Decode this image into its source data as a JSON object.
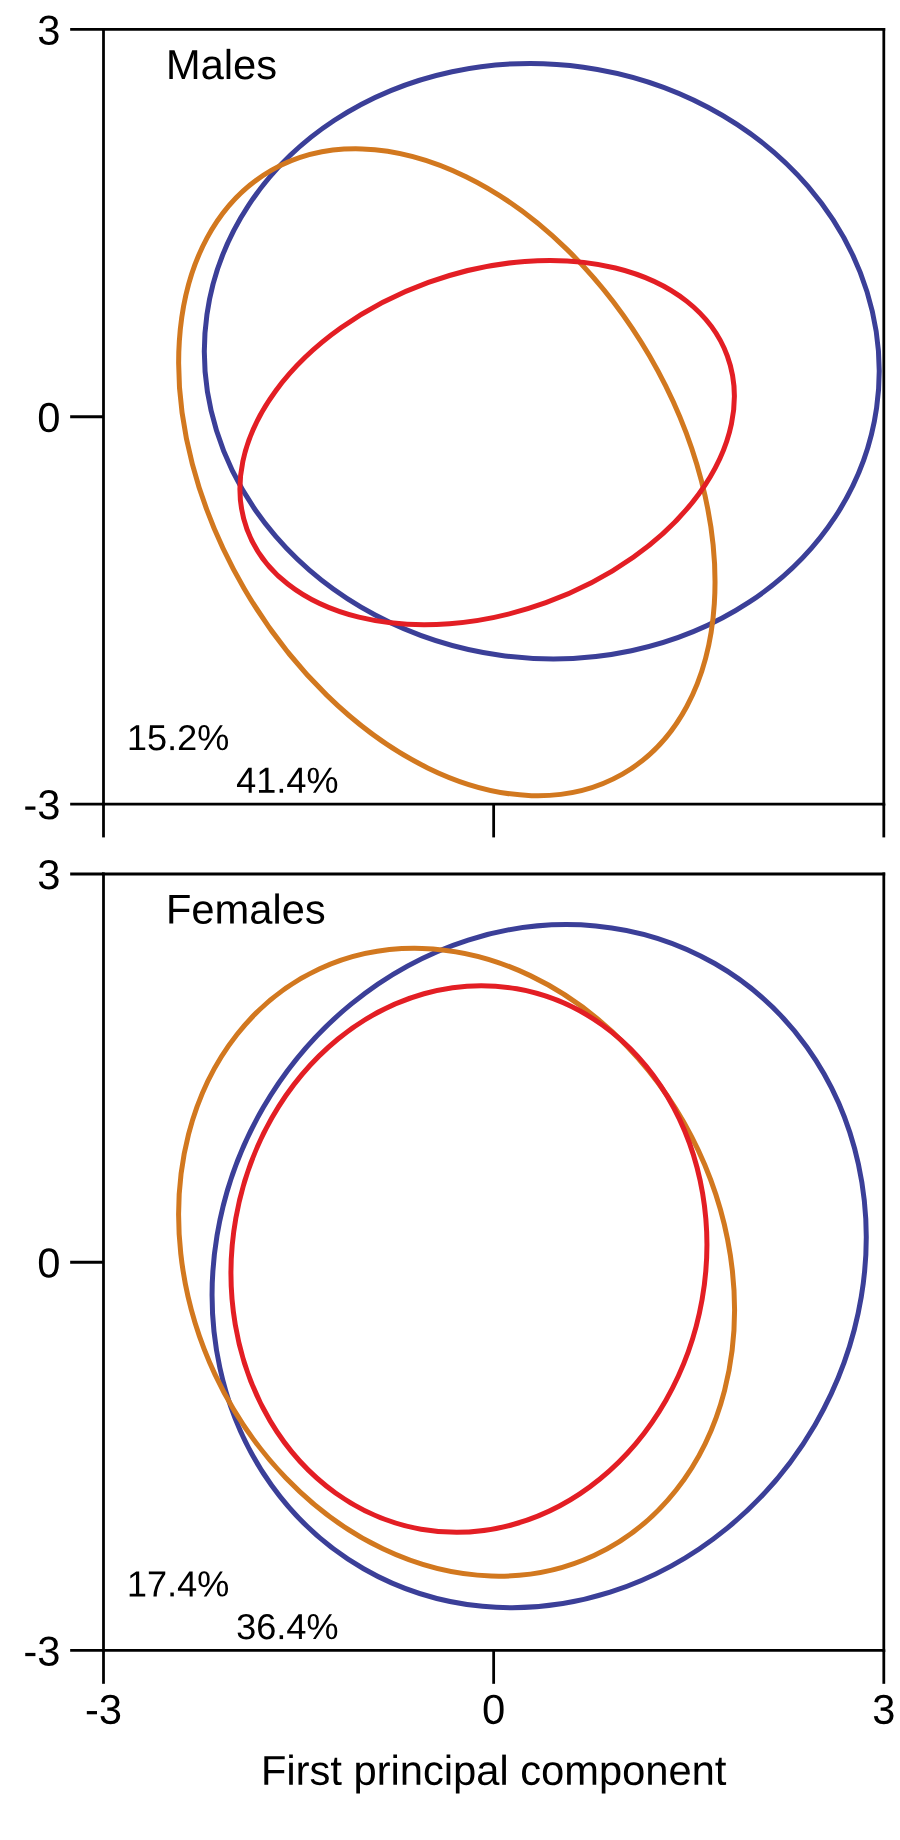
{
  "chart_data": [
    {
      "type": "line",
      "title": "Males",
      "annotations": [
        "15.2%",
        "41.4%"
      ],
      "xlim": [
        -3,
        3
      ],
      "ylim": [
        -3,
        3
      ],
      "xticks": [
        -3,
        0,
        3
      ],
      "yticks": [
        -3,
        0,
        3
      ],
      "tick_labels": "y"
    },
    {
      "type": "line",
      "title": "Females",
      "xlabel": "First principal component",
      "annotations": [
        "17.4%",
        "36.4%"
      ],
      "xlim": [
        -3,
        3
      ],
      "ylim": [
        -3,
        3
      ],
      "xticks": [
        -3,
        0,
        3
      ],
      "yticks": [
        -3,
        0,
        3
      ]
    }
  ]
}
